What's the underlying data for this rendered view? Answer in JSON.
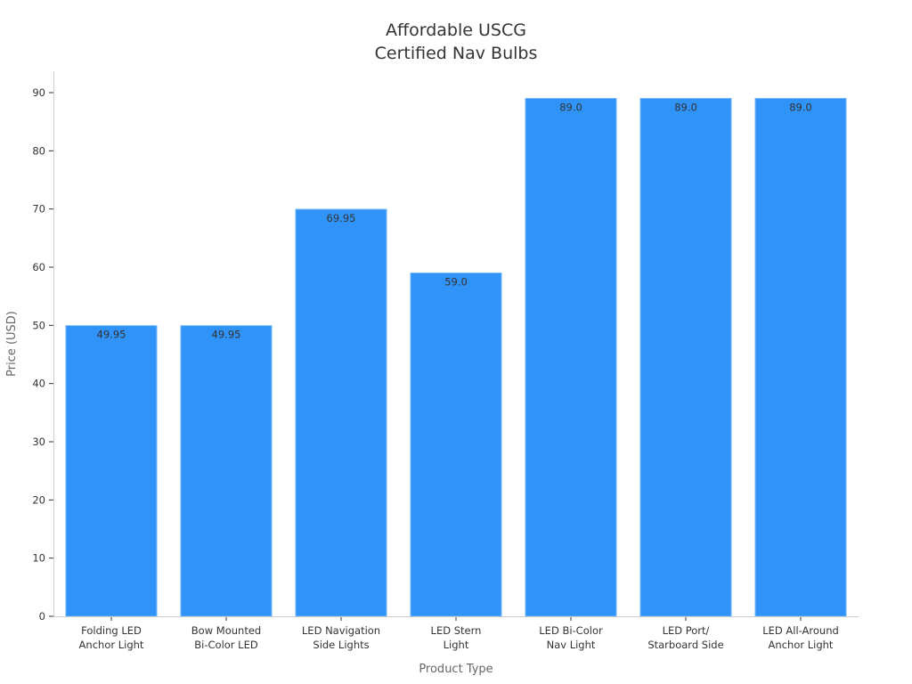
{
  "chart_data": {
    "type": "bar",
    "title_lines": [
      "Affordable USCG",
      "Certified Nav Bulbs"
    ],
    "xlabel": "Product Type",
    "ylabel": "Price (USD)",
    "ylim": [
      0,
      90
    ],
    "yticks": [
      0,
      10,
      20,
      30,
      40,
      50,
      60,
      70,
      80,
      90
    ],
    "categories": [
      [
        "Folding LED",
        "Anchor Light"
      ],
      [
        "Bow Mounted",
        "Bi-Color LED"
      ],
      [
        "LED Navigation",
        "Side Lights"
      ],
      [
        "LED Stern",
        "Light"
      ],
      [
        "LED Bi-Color",
        "Nav Light"
      ],
      [
        "LED Port/",
        "Starboard Side"
      ],
      [
        "LED All-Around",
        "Anchor Light"
      ]
    ],
    "values": [
      49.95,
      49.95,
      69.95,
      59.0,
      89.0,
      89.0,
      89.0
    ],
    "value_labels": [
      "49.95",
      "49.95",
      "69.95",
      "59.0",
      "89.0",
      "89.0",
      "89.0"
    ],
    "bar_color": "#2f93f8",
    "grid": false,
    "legend": "none"
  }
}
